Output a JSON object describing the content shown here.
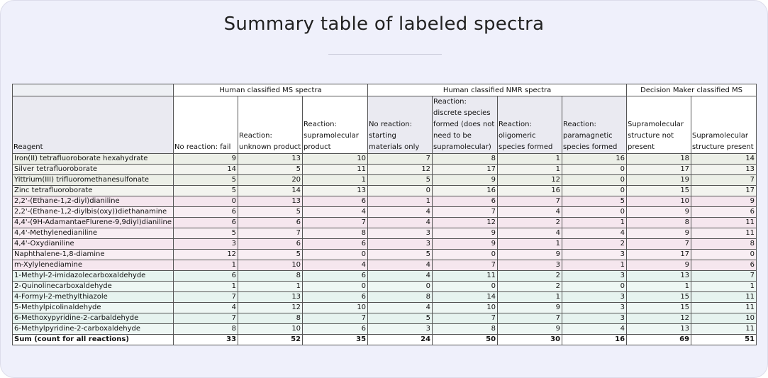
{
  "title": "Summary table of labeled spectra",
  "group_headers": [
    "",
    "Human classified MS spectra",
    "Human classified NMR spectra",
    "Decision Maker classified MS"
  ],
  "column_headers": [
    "Reagent",
    "No reaction: fail",
    "Reaction: unknown product",
    "Reaction: supramolecular product",
    "No reaction: starting materials only",
    "Reaction: discrete species formed (does not need to be supramolecular)",
    "Reaction: oligomeric species formed",
    "Reaction: paramagnetic species formed",
    "Supramolecular structure not present",
    "Supramolecular structure present"
  ],
  "rows": [
    {
      "reagent": "Iron(II) tetrafluoroborate hexahydrate",
      "values": [
        "9",
        "13",
        "10",
        "7",
        "8",
        "1",
        "16",
        "18",
        "14"
      ],
      "tint": "#ecefe7"
    },
    {
      "reagent": "Silver tetrafluoroborate",
      "values": [
        "14",
        "5",
        "11",
        "12",
        "17",
        "1",
        "0",
        "17",
        "13"
      ],
      "tint": "#f3f4ef"
    },
    {
      "reagent": "Yittrium(III) trifluoromethanesulfonate",
      "values": [
        "5",
        "20",
        "1",
        "5",
        "9",
        "12",
        "0",
        "19",
        "7"
      ],
      "tint": "#ecefe7"
    },
    {
      "reagent": "Zinc tetrafluoroborate",
      "values": [
        "5",
        "14",
        "13",
        "0",
        "16",
        "16",
        "0",
        "15",
        "17"
      ],
      "tint": "#f3f4ef"
    },
    {
      "reagent": "2,2'-(Ethane-1,2-diyl)dianiline",
      "values": [
        "0",
        "13",
        "6",
        "1",
        "6",
        "7",
        "5",
        "10",
        "9"
      ],
      "tint": "#f5e6ee"
    },
    {
      "reagent": "2,2'-(Ethane-1,2-diylbis(oxy))diethanamine",
      "values": [
        "6",
        "5",
        "4",
        "4",
        "7",
        "4",
        "0",
        "9",
        "6"
      ],
      "tint": "#f8eef3"
    },
    {
      "reagent": "4,4'-(9H-AdamantaeFlurene-9,9diyl)dianiline",
      "values": [
        "6",
        "6",
        "7",
        "4",
        "12",
        "2",
        "1",
        "8",
        "11"
      ],
      "tint": "#f5e6ee"
    },
    {
      "reagent": "4,4'-Methylenedianiline",
      "values": [
        "5",
        "7",
        "8",
        "3",
        "9",
        "4",
        "4",
        "9",
        "11"
      ],
      "tint": "#f8eef3"
    },
    {
      "reagent": "4,4'-Oxydianiline",
      "values": [
        "3",
        "6",
        "6",
        "3",
        "9",
        "1",
        "2",
        "7",
        "8"
      ],
      "tint": "#f5e6ee"
    },
    {
      "reagent": "Naphthalene-1,8-diamine",
      "values": [
        "12",
        "5",
        "0",
        "5",
        "0",
        "9",
        "3",
        "17",
        "0"
      ],
      "tint": "#f8eef3"
    },
    {
      "reagent": "m-Xylylenediamine",
      "values": [
        "1",
        "10",
        "4",
        "4",
        "7",
        "3",
        "1",
        "9",
        "6"
      ],
      "tint": "#f5e6ee"
    },
    {
      "reagent": "1-Methyl-2-imidazolecarboxaldehyde",
      "values": [
        "6",
        "8",
        "6",
        "4",
        "11",
        "2",
        "3",
        "13",
        "7"
      ],
      "tint": "#e6f3ef"
    },
    {
      "reagent": "2-Quinolinecarboxaldehyde",
      "values": [
        "1",
        "1",
        "0",
        "0",
        "0",
        "2",
        "0",
        "1",
        "1"
      ],
      "tint": "#eef7f4"
    },
    {
      "reagent": "4-Formyl-2-methylthiazole",
      "values": [
        "7",
        "13",
        "6",
        "8",
        "14",
        "1",
        "3",
        "15",
        "11"
      ],
      "tint": "#e6f3ef"
    },
    {
      "reagent": "5-Methylpicolinaldehyde",
      "values": [
        "4",
        "12",
        "10",
        "4",
        "10",
        "9",
        "3",
        "15",
        "11"
      ],
      "tint": "#eef7f4"
    },
    {
      "reagent": "6-Methoxypyridine-2-carbaldehyde",
      "values": [
        "7",
        "8",
        "7",
        "5",
        "7",
        "7",
        "3",
        "12",
        "10"
      ],
      "tint": "#e6f3ef"
    },
    {
      "reagent": "6-Methylpyridine-2-carboxaldehyde",
      "values": [
        "8",
        "10",
        "6",
        "3",
        "8",
        "9",
        "4",
        "13",
        "11"
      ],
      "tint": "#eef7f4"
    }
  ],
  "sum_row": {
    "reagent": "Sum (count for all reactions)",
    "values": [
      "33",
      "52",
      "35",
      "24",
      "50",
      "30",
      "16",
      "69",
      "51"
    ]
  }
}
